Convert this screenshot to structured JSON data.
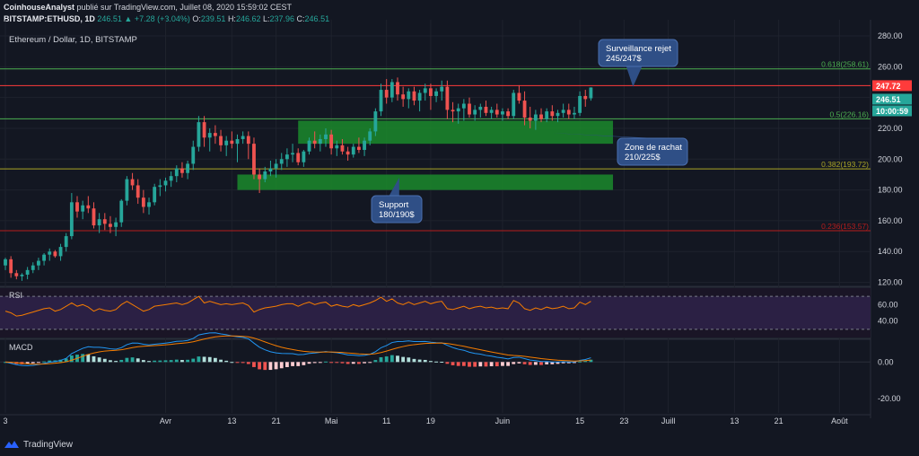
{
  "header": {
    "line1": {
      "author": "CoinhouseAnalyst",
      "text": "publié sur TradingView.com, Juillet 08, 2020 15:59:02 CEST"
    },
    "line2": {
      "symbol": "BITSTAMP:ETHUSD, 1D",
      "last": "246.51",
      "change": "▲ +7.28 (+3.04%)",
      "o_label": "O:",
      "o_val": "239.51",
      "h_label": "H:",
      "h_val": "246.62",
      "l_label": "L:",
      "l_val": "237.96",
      "c_label": "C:",
      "c_val": "246.51"
    }
  },
  "footer": {
    "brand": "TradingView"
  },
  "colors": {
    "background": "#131722",
    "up": "#26a69a",
    "down": "#ef5350",
    "zone": "#1b8a2c",
    "callout": "#2f4f86",
    "rsi_line": "#f57c00",
    "macd_line": "#2196f3",
    "signal_line": "#f57c00",
    "fib_green": "#4caf50",
    "fib_olive": "#aaa526",
    "fib_red": "#b71c1c",
    "resistance": "#ff3b3b"
  },
  "chart_data": {
    "type": "candlestick",
    "title": "Ethereum / Dollar, 1D, BITSTAMP",
    "y_axis": {
      "range": [
        118,
        287
      ],
      "ticks": [
        120,
        140,
        160,
        180,
        200,
        220,
        240,
        260,
        280
      ]
    },
    "x_axis": {
      "start_date": "2020-03-03",
      "end_date": "2020-08-05",
      "ticks": [
        {
          "label": "3",
          "date": "2020-03-03"
        },
        {
          "label": "Avr",
          "date": "2020-04-01"
        },
        {
          "label": "13",
          "date": "2020-04-13"
        },
        {
          "label": "21",
          "date": "2020-04-21"
        },
        {
          "label": "Mai",
          "date": "2020-05-01"
        },
        {
          "label": "11",
          "date": "2020-05-11"
        },
        {
          "label": "19",
          "date": "2020-05-19"
        },
        {
          "label": "Juin",
          "date": "2020-06-01"
        },
        {
          "label": "15",
          "date": "2020-06-15"
        },
        {
          "label": "23",
          "date": "2020-06-23"
        },
        {
          "label": "Juill",
          "date": "2020-07-01"
        },
        {
          "label": "13",
          "date": "2020-07-13"
        },
        {
          "label": "21",
          "date": "2020-07-21"
        },
        {
          "label": "Août",
          "date": "2020-08-01"
        }
      ]
    },
    "price_badges": [
      {
        "text": "247.72",
        "value": 247.72,
        "color": "#ff3b3b"
      },
      {
        "text": "246.51",
        "value": 246.51,
        "color": "#26a69a"
      },
      {
        "text": "10:00:59",
        "value": 246.51,
        "color": "#26a69a"
      }
    ],
    "fib_levels": [
      {
        "label": "0.618(258.61)",
        "value": 258.61,
        "color": "#4caf50"
      },
      {
        "label": "0.5(226.16)",
        "value": 226.16,
        "color": "#4caf50"
      },
      {
        "label": "0.382(193.72)",
        "value": 193.72,
        "color": "#aaa526"
      },
      {
        "label": "0.236(153.57)",
        "value": 153.57,
        "color": "#b71c1c"
      }
    ],
    "resistance_level": 247.72,
    "zones": [
      {
        "name": "zone-de-rachat",
        "from": "2020-04-25",
        "to": "2020-06-21",
        "low": 210,
        "high": 225
      },
      {
        "name": "support",
        "from": "2020-04-14",
        "to": "2020-06-21",
        "low": 180,
        "high": 190
      }
    ],
    "annotations": [
      {
        "name": "callout-surveillance",
        "line1": "Surveillance rejet",
        "line2": "245/247$"
      },
      {
        "name": "callout-zone-rachat",
        "line1": "Zone de rachat",
        "line2": "210/225$"
      },
      {
        "name": "callout-support",
        "line1": "Support",
        "line2": "180/190$"
      }
    ],
    "candles": [
      [
        131,
        136,
        128,
        135
      ],
      [
        135,
        137,
        123,
        126
      ],
      [
        126,
        128,
        122,
        124
      ],
      [
        124,
        126,
        121,
        125
      ],
      [
        125,
        130,
        122,
        128
      ],
      [
        128,
        133,
        126,
        131
      ],
      [
        131,
        136,
        128,
        134
      ],
      [
        134,
        139,
        131,
        138
      ],
      [
        138,
        142,
        134,
        140
      ],
      [
        140,
        141,
        136,
        137
      ],
      [
        137,
        145,
        134,
        143
      ],
      [
        143,
        152,
        140,
        150
      ],
      [
        150,
        178,
        148,
        172
      ],
      [
        172,
        176,
        162,
        166
      ],
      [
        166,
        173,
        161,
        170
      ],
      [
        170,
        176,
        165,
        168
      ],
      [
        168,
        172,
        155,
        157
      ],
      [
        157,
        165,
        152,
        161
      ],
      [
        161,
        165,
        154,
        158
      ],
      [
        158,
        163,
        152,
        156
      ],
      [
        156,
        162,
        150,
        159
      ],
      [
        159,
        174,
        156,
        173
      ],
      [
        173,
        189,
        170,
        187
      ],
      [
        187,
        191,
        180,
        183
      ],
      [
        183,
        187,
        171,
        175
      ],
      [
        175,
        180,
        165,
        169
      ],
      [
        169,
        175,
        164,
        172
      ],
      [
        172,
        184,
        170,
        182
      ],
      [
        182,
        187,
        176,
        183
      ],
      [
        183,
        188,
        179,
        186
      ],
      [
        186,
        192,
        182,
        189
      ],
      [
        189,
        196,
        185,
        194
      ],
      [
        194,
        198,
        188,
        191
      ],
      [
        191,
        199,
        187,
        197
      ],
      [
        197,
        212,
        193,
        208
      ],
      [
        208,
        228,
        205,
        224
      ],
      [
        224,
        228,
        208,
        214
      ],
      [
        214,
        220,
        205,
        217
      ],
      [
        217,
        222,
        210,
        215
      ],
      [
        215,
        219,
        205,
        209
      ],
      [
        209,
        215,
        202,
        212
      ],
      [
        212,
        218,
        207,
        210
      ],
      [
        210,
        216,
        198,
        213
      ],
      [
        213,
        218,
        210,
        215
      ],
      [
        215,
        218,
        200,
        210
      ],
      [
        210,
        214,
        187,
        190
      ],
      [
        190,
        194,
        178,
        187
      ],
      [
        187,
        195,
        185,
        192
      ],
      [
        192,
        199,
        189,
        194
      ],
      [
        194,
        200,
        188,
        197
      ],
      [
        197,
        204,
        193,
        200
      ],
      [
        200,
        207,
        195,
        203
      ],
      [
        203,
        210,
        198,
        204
      ],
      [
        204,
        207,
        196,
        198
      ],
      [
        198,
        206,
        195,
        205
      ],
      [
        205,
        214,
        203,
        212
      ],
      [
        212,
        218,
        207,
        210
      ],
      [
        210,
        216,
        205,
        213
      ],
      [
        213,
        220,
        208,
        216
      ],
      [
        216,
        219,
        203,
        207
      ],
      [
        207,
        212,
        202,
        209
      ],
      [
        209,
        213,
        203,
        205
      ],
      [
        205,
        208,
        199,
        203
      ],
      [
        203,
        210,
        201,
        208
      ],
      [
        208,
        214,
        204,
        206
      ],
      [
        206,
        214,
        202,
        212
      ],
      [
        212,
        220,
        209,
        218
      ],
      [
        218,
        233,
        215,
        231
      ],
      [
        231,
        249,
        228,
        245
      ],
      [
        245,
        252,
        236,
        240
      ],
      [
        240,
        252,
        237,
        250
      ],
      [
        250,
        253,
        238,
        242
      ],
      [
        242,
        247,
        234,
        239
      ],
      [
        239,
        246,
        233,
        244
      ],
      [
        244,
        247,
        235,
        238
      ],
      [
        238,
        245,
        231,
        243
      ],
      [
        243,
        249,
        238,
        246
      ],
      [
        246,
        249,
        232,
        241
      ],
      [
        241,
        246,
        237,
        244
      ],
      [
        244,
        251,
        238,
        247
      ],
      [
        247,
        251,
        226,
        232
      ],
      [
        232,
        237,
        224,
        231
      ],
      [
        231,
        236,
        223,
        233
      ],
      [
        233,
        239,
        225,
        236
      ],
      [
        236,
        240,
        227,
        229
      ],
      [
        229,
        235,
        225,
        232
      ],
      [
        232,
        236,
        227,
        234
      ],
      [
        234,
        238,
        228,
        230
      ],
      [
        230,
        234,
        226,
        232
      ],
      [
        232,
        236,
        227,
        229
      ],
      [
        229,
        233,
        225,
        231
      ],
      [
        231,
        233,
        226,
        228
      ],
      [
        228,
        245,
        226,
        243
      ],
      [
        243,
        248,
        236,
        238
      ],
      [
        238,
        244,
        222,
        227
      ],
      [
        227,
        234,
        220,
        225
      ],
      [
        225,
        232,
        219,
        229
      ],
      [
        229,
        233,
        224,
        226
      ],
      [
        226,
        233,
        224,
        231
      ],
      [
        231,
        235,
        225,
        228
      ],
      [
        228,
        232,
        224,
        230
      ],
      [
        230,
        236,
        227,
        232
      ],
      [
        232,
        236,
        226,
        229
      ],
      [
        229,
        234,
        226,
        230
      ],
      [
        230,
        244,
        228,
        241
      ],
      [
        241,
        245,
        234,
        239
      ],
      [
        239.51,
        246.62,
        237.96,
        246.51
      ]
    ],
    "panels": [
      {
        "name": "RSI",
        "label": "RSI",
        "ticks": [
          "60.00",
          "40.00"
        ],
        "levels": [
          70,
          30
        ],
        "values": [
          52,
          50,
          46,
          47,
          49,
          51,
          53,
          55,
          56,
          52,
          54,
          58,
          62,
          58,
          60,
          57,
          52,
          55,
          53,
          52,
          54,
          60,
          64,
          60,
          56,
          52,
          54,
          58,
          59,
          60,
          61,
          62,
          60,
          62,
          66,
          70,
          62,
          64,
          62,
          60,
          61,
          60,
          61,
          62,
          59,
          51,
          54,
          56,
          57,
          58,
          60,
          61,
          61,
          58,
          61,
          63,
          60,
          62,
          63,
          58,
          60,
          58,
          57,
          60,
          58,
          60,
          62,
          65,
          69,
          64,
          67,
          62,
          60,
          63,
          60,
          62,
          64,
          61,
          63,
          64,
          55,
          54,
          56,
          58,
          55,
          57,
          58,
          56,
          57,
          55,
          56,
          55,
          65,
          62,
          55,
          53,
          56,
          54,
          57,
          55,
          56,
          58,
          55,
          56,
          63,
          60,
          64
        ]
      },
      {
        "name": "MACD",
        "label": "MACD",
        "ticks": [
          "0.00",
          "-20.00"
        ],
        "range": [
          -28,
          12
        ]
      }
    ]
  }
}
